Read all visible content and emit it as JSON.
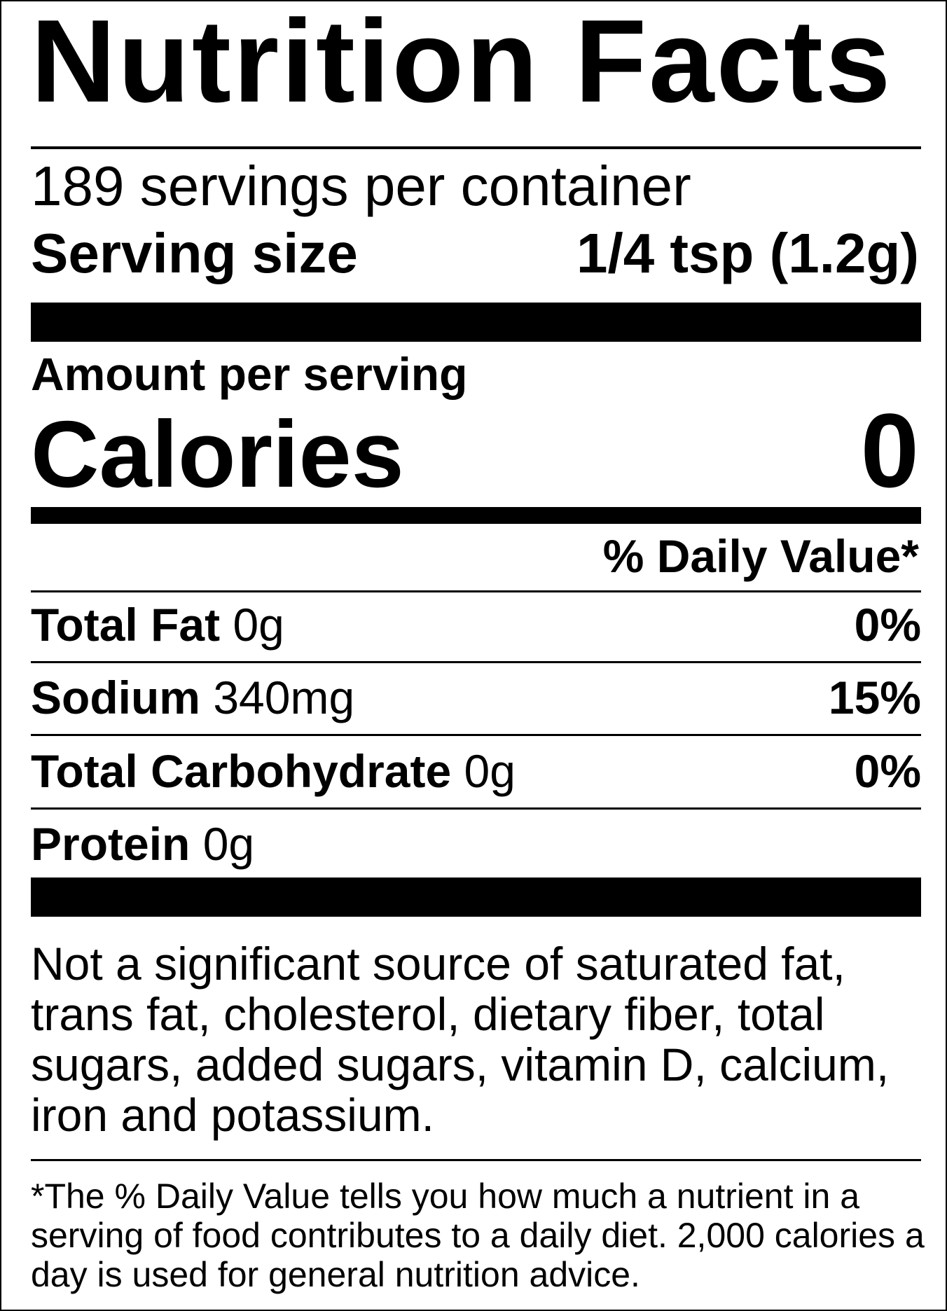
{
  "title": "Nutrition Facts",
  "servings_per_container": "189 servings per container",
  "serving_size": {
    "label": "Serving size",
    "value": "1/4 tsp (1.2g)"
  },
  "amount_per_serving": "Amount per serving",
  "calories": {
    "label": "Calories",
    "value": "0"
  },
  "daily_value_header": "% Daily Value*",
  "nutrients": [
    {
      "name": "Total Fat",
      "amount": "0g",
      "dv": "0%"
    },
    {
      "name": "Sodium",
      "amount": "340mg",
      "dv": "15%"
    },
    {
      "name": "Total Carbohydrate",
      "amount": "0g",
      "dv": "0%"
    },
    {
      "name": "Protein",
      "amount": "0g",
      "dv": ""
    }
  ],
  "not_significant": [
    "Not a significant source of saturated fat,",
    "trans fat, cholesterol, dietary fiber, total",
    "sugars, added sugars, vitamin D, calcium,",
    "iron and potassium."
  ],
  "footnote": [
    "*The % Daily Value tells you how much a nutrient in a",
    "serving of food contributes to a daily diet. 2,000 calories a",
    "day is used for general nutrition advice."
  ]
}
